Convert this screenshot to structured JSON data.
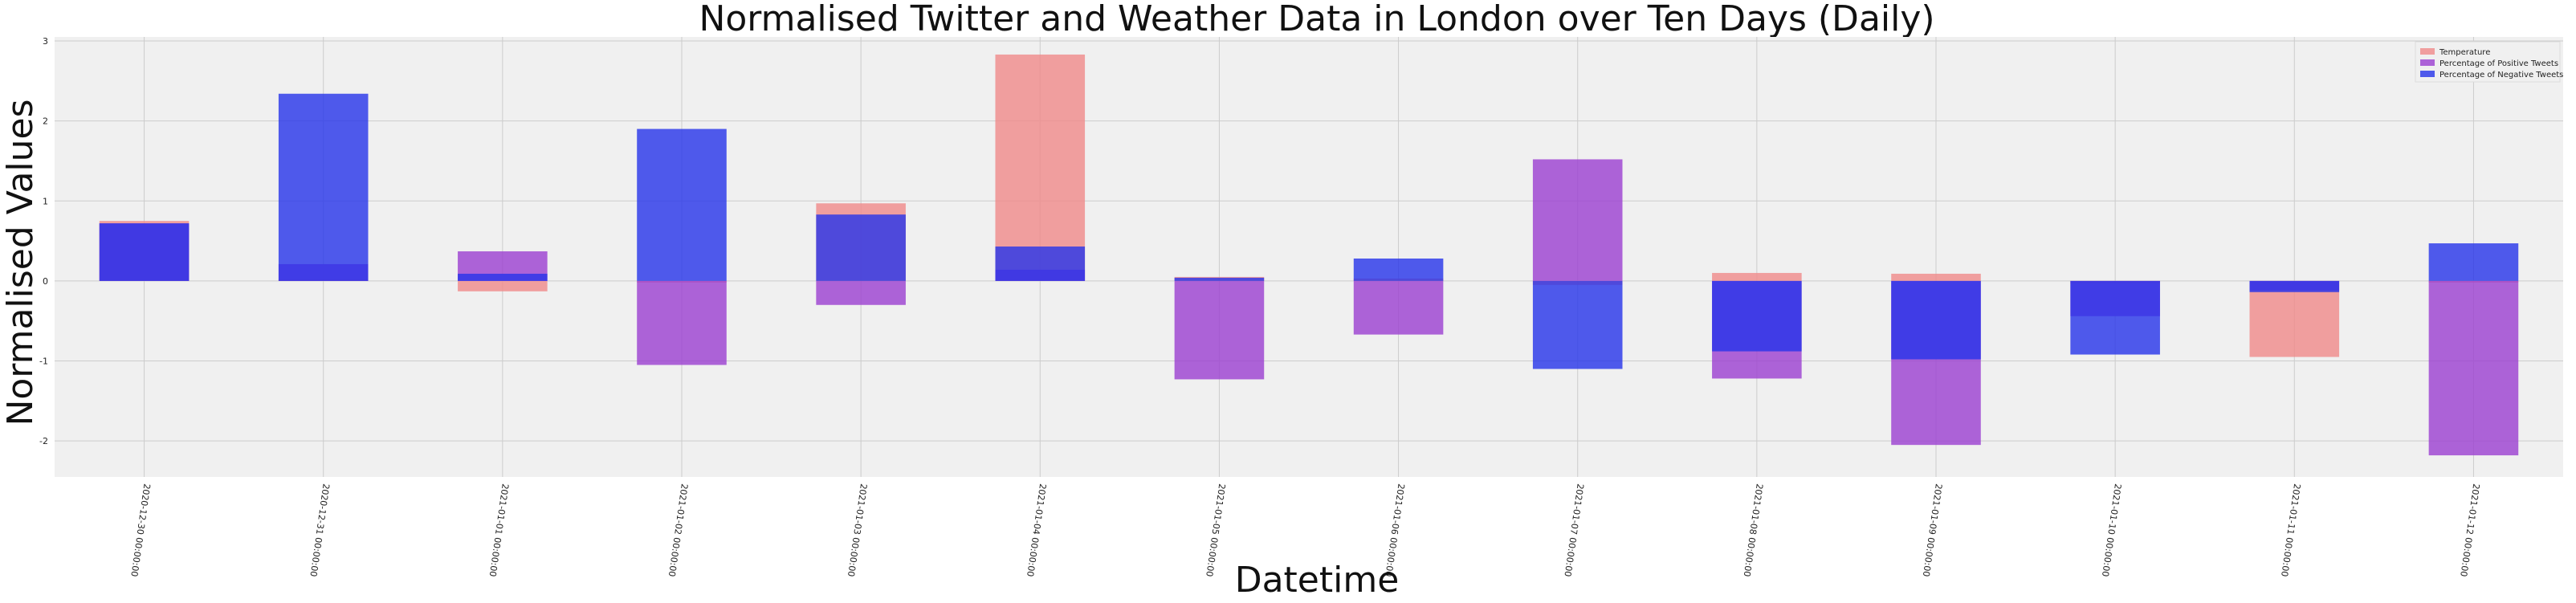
{
  "chart_data": {
    "type": "bar",
    "title": "Normalised Twitter and Weather Data in London over Ten Days (Daily)",
    "xlabel": "Datetime",
    "ylabel": "Normalised Values",
    "categories": [
      "2020-12-30 00:00:00",
      "2020-12-31 00:00:00",
      "2021-01-01 00:00:00",
      "2021-01-02 00:00:00",
      "2021-01-03 00:00:00",
      "2021-01-04 00:00:00",
      "2021-01-05 00:00:00",
      "2021-01-06 00:00:00",
      "2021-01-07 00:00:00",
      "2021-01-08 00:00:00",
      "2021-01-09 00:00:00",
      "2021-01-10 00:00:00",
      "2021-01-11 00:00:00",
      "2021-01-12 00:00:00"
    ],
    "series": [
      {
        "name": "Temperature",
        "color": "#f08a8a",
        "values": [
          0.75,
          0.02,
          -0.13,
          -0.02,
          0.97,
          2.83,
          0.05,
          0.03,
          -0.05,
          0.1,
          0.09,
          -0.03,
          -0.95,
          -0.02
        ]
      },
      {
        "name": "Percentage of Positive Tweets",
        "color": "#9b3ed1",
        "values": [
          0.72,
          0.21,
          0.37,
          -1.05,
          -0.3,
          0.14,
          -1.23,
          -0.67,
          1.52,
          -1.22,
          -2.05,
          -0.44,
          -0.12,
          -2.18
        ]
      },
      {
        "name": "Percentage of Negative Tweets",
        "color": "#2533ea",
        "values": [
          0.72,
          2.34,
          0.09,
          1.9,
          0.83,
          0.43,
          0.04,
          0.28,
          -1.1,
          -0.88,
          -0.98,
          -0.92,
          -0.14,
          0.47
        ]
      }
    ],
    "ylim": [
      -2.45,
      3.05
    ],
    "yticks": [
      -2,
      -1,
      0,
      1,
      2,
      3
    ],
    "grid": true,
    "legend": "top-right"
  }
}
